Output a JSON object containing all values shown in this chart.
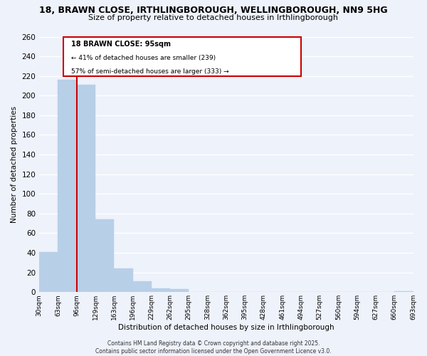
{
  "title": "18, BRAWN CLOSE, IRTHLINGBOROUGH, WELLINGBOROUGH, NN9 5HG",
  "subtitle": "Size of property relative to detached houses in Irthlingborough",
  "xlabel": "Distribution of detached houses by size in Irthlingborough",
  "ylabel": "Number of detached properties",
  "bar_values": [
    41,
    216,
    211,
    74,
    24,
    11,
    4,
    3,
    0,
    0,
    0,
    0,
    0,
    0,
    0,
    0,
    0,
    0,
    0,
    1
  ],
  "categories": [
    "30sqm",
    "63sqm",
    "96sqm",
    "129sqm",
    "163sqm",
    "196sqm",
    "229sqm",
    "262sqm",
    "295sqm",
    "328sqm",
    "362sqm",
    "395sqm",
    "428sqm",
    "461sqm",
    "494sqm",
    "527sqm",
    "560sqm",
    "594sqm",
    "627sqm",
    "660sqm",
    "693sqm"
  ],
  "bar_color": "#b8cfe8",
  "bar_edge_color": "#b8cfe8",
  "vline_color": "#cc0000",
  "ylim": [
    0,
    260
  ],
  "yticks": [
    0,
    20,
    40,
    60,
    80,
    100,
    120,
    140,
    160,
    180,
    200,
    220,
    240,
    260
  ],
  "annotation_title": "18 BRAWN CLOSE: 95sqm",
  "annotation_line1": "← 41% of detached houses are smaller (239)",
  "annotation_line2": "57% of semi-detached houses are larger (333) →",
  "annotation_box_color": "#cc0000",
  "background_color": "#eef2fb",
  "grid_color": "#ffffff",
  "footer1": "Contains HM Land Registry data © Crown copyright and database right 2025.",
  "footer2": "Contains public sector information licensed under the Open Government Licence v3.0."
}
